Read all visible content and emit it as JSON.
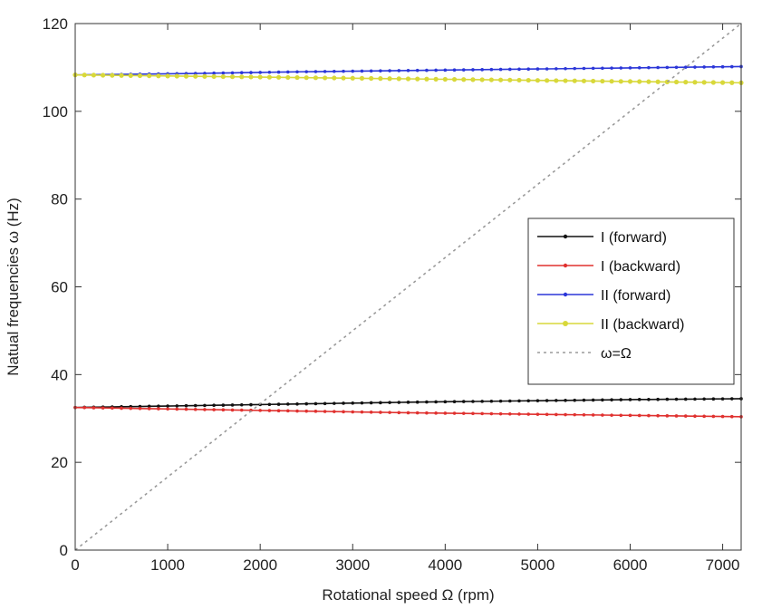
{
  "chart_data": {
    "type": "line",
    "title": "",
    "xlabel": "Rotational speed Ω (rpm)",
    "ylabel": "Natual frequencies ω (Hz)",
    "xlim": [
      0,
      7200
    ],
    "ylim": [
      0,
      120
    ],
    "xticks": [
      0,
      1000,
      2000,
      3000,
      4000,
      5000,
      6000,
      7000
    ],
    "yticks": [
      0,
      20,
      40,
      60,
      80,
      100,
      120
    ],
    "grid": false,
    "legend_position": "center-right",
    "series": [
      {
        "name": "I (forward)",
        "color": "#111111",
        "marker": "dot",
        "x": [
          0,
          1200,
          2400,
          3600,
          4800,
          6000,
          7200
        ],
        "y": [
          32.5,
          32.9,
          33.3,
          33.7,
          34.0,
          34.3,
          34.5
        ]
      },
      {
        "name": "I (backward)",
        "color": "#e0312f",
        "marker": "dot",
        "x": [
          0,
          1200,
          2400,
          3600,
          4800,
          6000,
          7200
        ],
        "y": [
          32.5,
          32.1,
          31.7,
          31.3,
          31.0,
          30.7,
          30.4
        ]
      },
      {
        "name": "II (forward)",
        "color": "#2b36d8",
        "marker": "dot",
        "x": [
          0,
          1200,
          2400,
          3600,
          4800,
          6000,
          7200
        ],
        "y": [
          108.3,
          108.6,
          109.0,
          109.3,
          109.6,
          109.9,
          110.2
        ]
      },
      {
        "name": "II (backward)",
        "color": "#d8d83a",
        "marker": "dot",
        "x": [
          0,
          1200,
          2400,
          3600,
          4800,
          6000,
          7200
        ],
        "y": [
          108.3,
          108.0,
          107.7,
          107.4,
          107.1,
          106.8,
          106.5
        ]
      },
      {
        "name": "ω=Ω",
        "color": "#9a9a9a",
        "marker": "none",
        "dashed": true,
        "x": [
          0,
          7200
        ],
        "y": [
          0,
          120
        ]
      }
    ]
  }
}
